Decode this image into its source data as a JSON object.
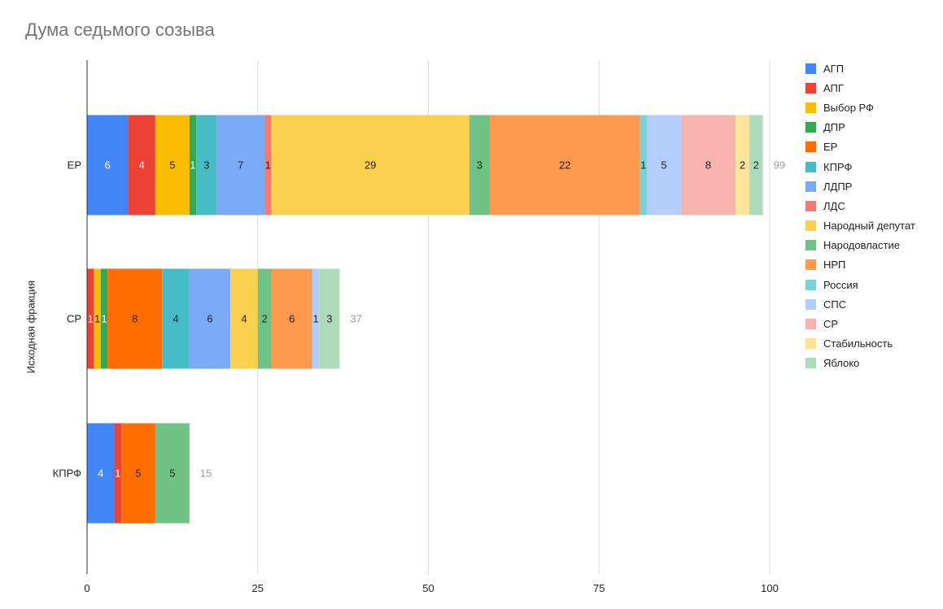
{
  "chart_data": {
    "type": "bar",
    "orientation": "horizontal",
    "stacked": true,
    "title": "Дума седьмого созыва",
    "xlabel": "",
    "ylabel": "Исходная фракция",
    "xlim": [
      0,
      100
    ],
    "xticks": [
      "0",
      "25",
      "50",
      "75",
      "100"
    ],
    "grid": true,
    "legend_position": "right",
    "categories": [
      "ЕР",
      "СР",
      "КПРФ"
    ],
    "totals": [
      99,
      37,
      15
    ],
    "series": [
      {
        "name": "АГП",
        "color": "#4285f4",
        "values": [
          6,
          0,
          4
        ],
        "label_color": "#ffffff"
      },
      {
        "name": "АПГ",
        "color": "#ea4335",
        "values": [
          4,
          1,
          1
        ],
        "label_color": "#ffffff"
      },
      {
        "name": "Выбор РФ",
        "color": "#fbbc04",
        "values": [
          5,
          1,
          0
        ],
        "label_color": "#222222"
      },
      {
        "name": "ДПР",
        "color": "#34a853",
        "values": [
          1,
          1,
          0
        ],
        "label_color": "#ffffff"
      },
      {
        "name": "ЕР",
        "color": "#ff6d01",
        "values": [
          0,
          8,
          5
        ],
        "label_color": "#222222"
      },
      {
        "name": "КПРФ",
        "color": "#46bdc6",
        "values": [
          3,
          4,
          0
        ],
        "label_color": "#222222"
      },
      {
        "name": "ЛДПР",
        "color": "#7baaf7",
        "values": [
          7,
          6,
          0
        ],
        "label_color": "#222222"
      },
      {
        "name": "ЛДС",
        "color": "#f07b72",
        "values": [
          1,
          0,
          0
        ],
        "label_color": "#222222"
      },
      {
        "name": "Народный депутат",
        "color": "#fcd04f",
        "values": [
          29,
          4,
          0
        ],
        "label_color": "#222222"
      },
      {
        "name": "Народовластие",
        "color": "#71c287",
        "values": [
          3,
          2,
          5
        ],
        "label_color": "#222222"
      },
      {
        "name": "НРП",
        "color": "#ff994d",
        "values": [
          22,
          6,
          0
        ],
        "label_color": "#222222"
      },
      {
        "name": "Россия",
        "color": "#7ed1d7",
        "values": [
          1,
          0,
          0
        ],
        "label_color": "#222222"
      },
      {
        "name": "СПС",
        "color": "#b3cefb",
        "values": [
          5,
          1,
          0
        ],
        "label_color": "#222222"
      },
      {
        "name": "СР",
        "color": "#f7b4ae",
        "values": [
          8,
          0,
          0
        ],
        "label_color": "#222222"
      },
      {
        "name": "Стабильность",
        "color": "#fde49b",
        "values": [
          2,
          0,
          0
        ],
        "label_color": "#222222"
      },
      {
        "name": "Яблоко",
        "color": "#aedcba",
        "values": [
          2,
          3,
          0
        ],
        "label_color": "#222222"
      }
    ]
  }
}
